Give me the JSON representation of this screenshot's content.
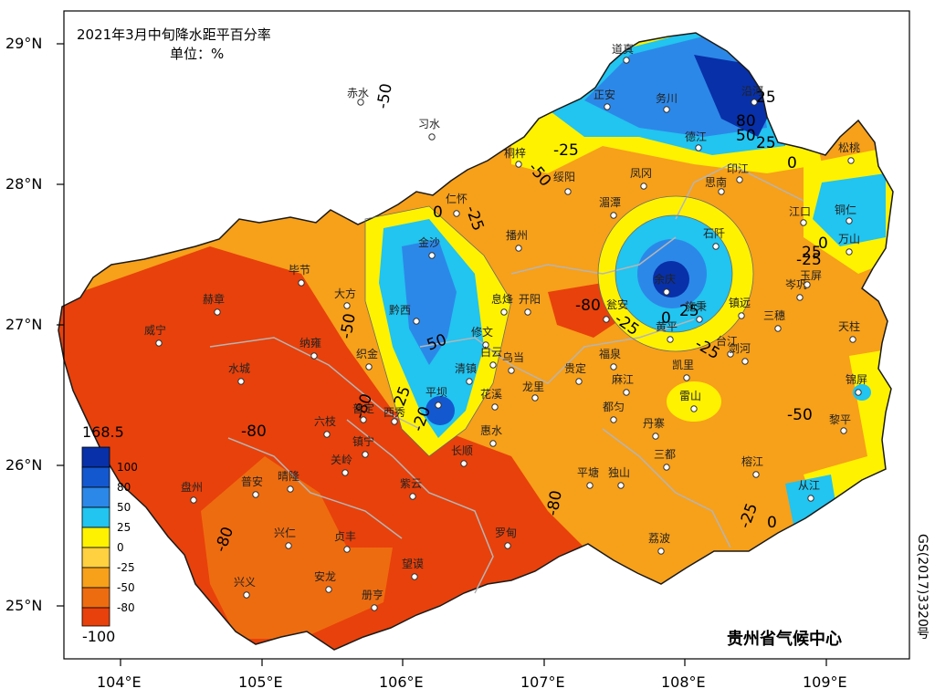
{
  "title": "2021年3月中旬降水距平百分率",
  "unit": "单位：%",
  "credit": "贵州省气候中心",
  "map_code": "GS(2017)3320号",
  "axes": {
    "lat": [
      "29°N",
      "28°N",
      "27°N",
      "26°N",
      "25°N"
    ],
    "lon": [
      "104°E",
      "105°E",
      "106°E",
      "107°E",
      "108°E",
      "109°E"
    ]
  },
  "legend": {
    "max": "168.5",
    "min": "-100",
    "ticks": [
      "100",
      "80",
      "50",
      "25",
      "0",
      "-25",
      "-50",
      "-80"
    ],
    "colors": [
      "#0830a8",
      "#1458d0",
      "#2c88e8",
      "#22c4f0",
      "#fff200",
      "#ffd040",
      "#f7a01a",
      "#ee6c10",
      "#e8410b"
    ]
  },
  "contour_labels": [
    "-50",
    "-25",
    "-50",
    "25",
    "80",
    "50",
    "25",
    "0",
    "-25",
    "0",
    "0",
    "25",
    "-25",
    "0",
    "50",
    "-80",
    "25",
    "-25",
    "-25",
    "-50",
    "25",
    "-20",
    "-80",
    "-80",
    "-80",
    "-80",
    "-50",
    "-25",
    "0"
  ],
  "cities": [
    "道真",
    "赤水",
    "正安",
    "务川",
    "沿河",
    "习水",
    "桐梓",
    "绥阳",
    "德江",
    "松桃",
    "凤冈",
    "印江",
    "思南",
    "江口",
    "铜仁",
    "仁怀",
    "湄潭",
    "石阡",
    "万山",
    "金沙",
    "播州",
    "毕节",
    "赫章",
    "大方",
    "黔西",
    "息烽",
    "开阳",
    "余庆",
    "施秉",
    "镇远",
    "岑巩",
    "玉屏",
    "三穗",
    "天柱",
    "威宁",
    "纳雍",
    "织金",
    "修文",
    "白云",
    "乌当",
    "瓮安",
    "黄平",
    "福泉",
    "台江",
    "剑河",
    "锦屏",
    "水城",
    "清镇",
    "贵定",
    "麻江",
    "凯里",
    "雷山",
    "平坝",
    "花溪",
    "龙里",
    "都匀",
    "丹寨",
    "六枝",
    "普定",
    "西秀",
    "镇宁",
    "长顺",
    "惠水",
    "关岭",
    "三都",
    "榕江",
    "黎平",
    "从江",
    "盘州",
    "普安",
    "晴隆",
    "紫云",
    "平塘",
    "独山",
    "兴仁",
    "贞丰",
    "罗甸",
    "荔波",
    "兴义",
    "安龙",
    "望谟",
    "册亨"
  ]
}
